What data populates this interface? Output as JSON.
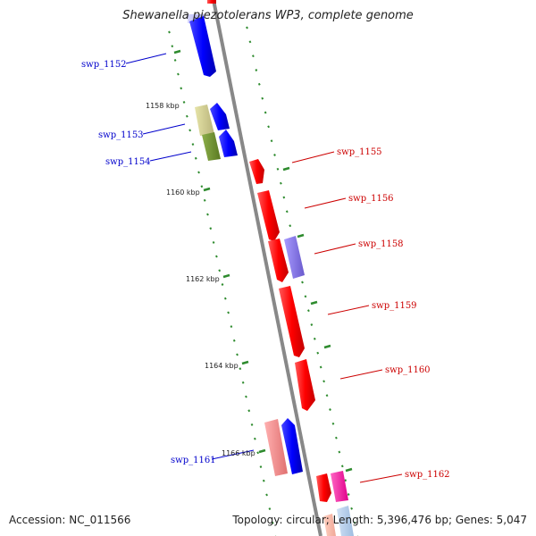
{
  "map": {
    "title": "Shewanella piezotolerans WP3, complete genome",
    "accession": "Accession: NC_011566",
    "topology": "Topology: circular; Length: 5,396,476 bp; Genes: 5,047"
  },
  "scale_labels": [
    "1158 kbp",
    "1160 kbp",
    "1162 kbp",
    "1164 kbp",
    "1166 kbp"
  ],
  "gene_labels": {
    "reverse": [
      "swp_1152",
      "swp_1153",
      "swp_1154",
      "swp_1161"
    ],
    "forward": [
      "swp_1155",
      "swp_1156",
      "swp_1158",
      "swp_1159",
      "swp_1160",
      "swp_1162"
    ]
  },
  "colors": {
    "reverse_label": "#0000cc",
    "forward_label": "#cc0000",
    "backbone": "#888888",
    "tick": "#2e8b2e"
  }
}
